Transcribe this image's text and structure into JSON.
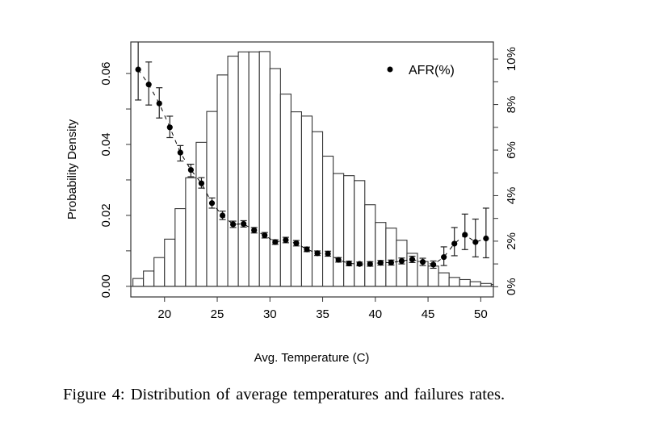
{
  "chart_data": {
    "type": "bar+scatter",
    "xlabel": "Avg. Temperature (C)",
    "ylabel": "Probability Density",
    "y2label": "",
    "xlim": [
      16.8,
      51.2
    ],
    "ylim": [
      -0.003,
      0.0689
    ],
    "y2lim": [
      -0.45,
      10.75
    ],
    "xticks": [
      20,
      25,
      30,
      35,
      40,
      45,
      50
    ],
    "yticks": [
      0.0,
      0.02,
      0.04,
      0.06
    ],
    "ytick_labels": [
      "0.00",
      "0.02",
      "0.04",
      "0.06"
    ],
    "y2ticks": [
      0,
      2,
      4,
      6,
      8,
      10
    ],
    "y2tick_labels": [
      "0%",
      "2%",
      "4%",
      "6%",
      "8%",
      "10%"
    ],
    "grid": false,
    "legend": {
      "position": "top-right",
      "entries": [
        "AFR(%)"
      ]
    },
    "histogram": {
      "bin_width": 1,
      "bin_starts": [
        17,
        18,
        19,
        20,
        21,
        22,
        23,
        24,
        25,
        26,
        27,
        28,
        29,
        30,
        31,
        32,
        33,
        34,
        35,
        36,
        37,
        38,
        39,
        40,
        41,
        42,
        43,
        44,
        45,
        46,
        47,
        48,
        49,
        50,
        51
      ],
      "density": [
        0.0022,
        0.0043,
        0.0081,
        0.0133,
        0.0219,
        0.0306,
        0.0406,
        0.0493,
        0.0596,
        0.0649,
        0.0661,
        0.0661,
        0.0662,
        0.0614,
        0.0542,
        0.0492,
        0.048,
        0.0436,
        0.0367,
        0.0318,
        0.0312,
        0.0298,
        0.023,
        0.018,
        0.0164,
        0.013,
        0.0093,
        0.007,
        0.0057,
        0.0038,
        0.0025,
        0.0019,
        0.0013,
        0.0008,
        0.0005
      ]
    },
    "series": [
      {
        "name": "AFR(%)",
        "axis": "right",
        "x": [
          17.5,
          18.5,
          19.5,
          20.5,
          21.5,
          22.5,
          23.5,
          24.5,
          25.5,
          26.5,
          27.5,
          28.5,
          29.5,
          30.5,
          31.5,
          32.5,
          33.5,
          34.5,
          35.5,
          36.5,
          37.5,
          38.5,
          39.5,
          40.5,
          41.5,
          42.5,
          43.5,
          44.5,
          45.5,
          46.5,
          47.5,
          48.5,
          49.5,
          50.5
        ],
        "y": [
          9.54,
          8.88,
          8.05,
          7.0,
          5.89,
          5.13,
          4.54,
          3.67,
          3.13,
          2.74,
          2.76,
          2.48,
          2.26,
          1.96,
          2.05,
          1.91,
          1.64,
          1.47,
          1.45,
          1.18,
          1.02,
          1.0,
          1.0,
          1.05,
          1.06,
          1.13,
          1.2,
          1.09,
          0.97,
          1.3,
          1.89,
          2.28,
          1.96,
          2.12
        ],
        "err_low": [
          8.2,
          7.98,
          7.41,
          6.55,
          5.52,
          4.83,
          4.33,
          3.45,
          2.95,
          2.6,
          2.62,
          2.36,
          2.14,
          1.86,
          1.93,
          1.79,
          1.54,
          1.37,
          1.34,
          1.08,
          0.92,
          0.92,
          0.9,
          0.95,
          0.95,
          1.0,
          1.06,
          0.93,
          0.81,
          0.93,
          1.36,
          1.63,
          1.31,
          1.27
        ],
        "err_high": [
          10.9,
          9.87,
          8.74,
          7.49,
          6.2,
          5.38,
          4.79,
          3.9,
          3.32,
          2.88,
          2.9,
          2.6,
          2.38,
          2.06,
          2.17,
          2.03,
          1.74,
          1.57,
          1.56,
          1.28,
          1.12,
          1.08,
          1.1,
          1.15,
          1.17,
          1.26,
          1.34,
          1.25,
          1.13,
          1.75,
          2.6,
          3.19,
          2.97,
          3.45
        ]
      }
    ]
  },
  "caption": "Figure 4:  Distribution of average temperatures and failures rates."
}
